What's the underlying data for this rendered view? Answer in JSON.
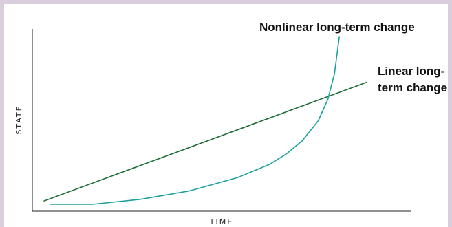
{
  "chart_data": {
    "type": "line",
    "xlabel": "TIME",
    "ylabel": "STATE",
    "xlim": [
      0,
      1
    ],
    "ylim": [
      0,
      1
    ],
    "series": [
      {
        "name": "Linear long-term change",
        "color": "#1d6b35",
        "x": [
          0,
          1
        ],
        "y": [
          0.02,
          0.73
        ]
      },
      {
        "name": "Nonlinear long-term change",
        "color": "#1ba19c",
        "x": [
          0.02,
          0.15,
          0.3,
          0.45,
          0.6,
          0.7,
          0.75,
          0.8,
          0.85,
          0.88,
          0.9,
          0.915
        ],
        "y": [
          0.0,
          0.0,
          0.03,
          0.08,
          0.16,
          0.24,
          0.3,
          0.38,
          0.5,
          0.63,
          0.78,
          1.0
        ]
      }
    ],
    "annotations": [
      {
        "text": "Nonlinear long-term change",
        "target": "Nonlinear long-term change"
      },
      {
        "text": "Linear long-",
        "target": "Linear long-term change"
      },
      {
        "text": "term change",
        "target": "Linear long-term change"
      }
    ],
    "grid": false,
    "legend": "none"
  }
}
